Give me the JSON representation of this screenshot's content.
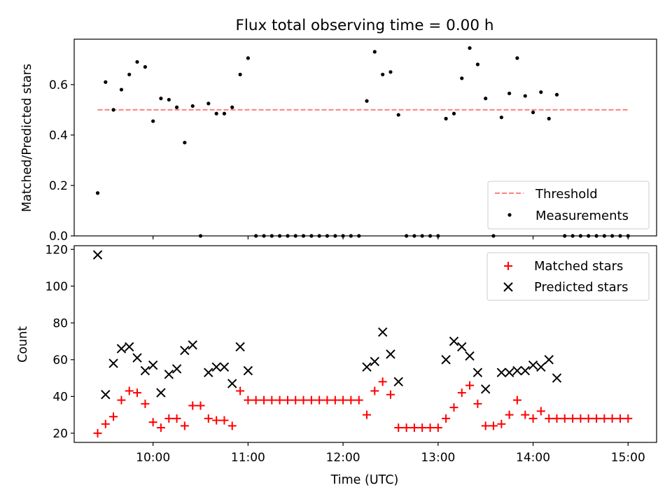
{
  "figure": {
    "title": "Flux total observing time = 0.00 h"
  },
  "chart_data": [
    {
      "type": "scatter",
      "xlabel": "",
      "ylabel": "Matched/Predicted stars",
      "xlim": [
        9.17,
        15.3
      ],
      "ylim": [
        0,
        0.78
      ],
      "yticks": [
        "0.0",
        "0.2",
        "0.4",
        "0.6"
      ],
      "xticks_shown": false,
      "grid": false,
      "legend_position": "lower-right",
      "threshold": {
        "name": "Threshold",
        "value": 0.5,
        "x_range": [
          9.417,
          15.0
        ],
        "color": "#ff7f7f",
        "style": "dashed"
      },
      "series": [
        {
          "name": "Measurements",
          "color": "#000000",
          "marker": "dot",
          "points": [
            [
              9.417,
              0.17
            ],
            [
              9.5,
              0.61
            ],
            [
              9.583,
              0.5
            ],
            [
              9.667,
              0.58
            ],
            [
              9.75,
              0.64
            ],
            [
              9.833,
              0.69
            ],
            [
              9.917,
              0.67
            ],
            [
              10.0,
              0.455
            ],
            [
              10.083,
              0.545
            ],
            [
              10.167,
              0.54
            ],
            [
              10.25,
              0.51
            ],
            [
              10.333,
              0.37
            ],
            [
              10.417,
              0.515
            ],
            [
              10.5,
              0.0
            ],
            [
              10.583,
              0.525
            ],
            [
              10.667,
              0.485
            ],
            [
              10.75,
              0.485
            ],
            [
              10.833,
              0.51
            ],
            [
              10.917,
              0.64
            ],
            [
              11.0,
              0.705
            ],
            [
              11.083,
              0.0
            ],
            [
              11.167,
              0.0
            ],
            [
              11.25,
              0.0
            ],
            [
              11.333,
              0.0
            ],
            [
              11.417,
              0.0
            ],
            [
              11.5,
              0.0
            ],
            [
              11.583,
              0.0
            ],
            [
              11.667,
              0.0
            ],
            [
              11.75,
              0.0
            ],
            [
              11.833,
              0.0
            ],
            [
              11.917,
              0.0
            ],
            [
              12.0,
              0.0
            ],
            [
              12.083,
              0.0
            ],
            [
              12.167,
              0.0
            ],
            [
              12.25,
              0.535
            ],
            [
              12.333,
              0.73
            ],
            [
              12.417,
              0.64
            ],
            [
              12.5,
              0.65
            ],
            [
              12.583,
              0.48
            ],
            [
              12.667,
              0.0
            ],
            [
              12.75,
              0.0
            ],
            [
              12.833,
              0.0
            ],
            [
              12.917,
              0.0
            ],
            [
              13.0,
              0.0
            ],
            [
              13.083,
              0.465
            ],
            [
              13.167,
              0.485
            ],
            [
              13.25,
              0.625
            ],
            [
              13.333,
              0.745
            ],
            [
              13.417,
              0.68
            ],
            [
              13.5,
              0.545
            ],
            [
              13.583,
              0.0
            ],
            [
              13.667,
              0.47
            ],
            [
              13.75,
              0.565
            ],
            [
              13.833,
              0.705
            ],
            [
              13.917,
              0.555
            ],
            [
              14.0,
              0.49
            ],
            [
              14.083,
              0.57
            ],
            [
              14.167,
              0.465
            ],
            [
              14.25,
              0.56
            ],
            [
              14.333,
              0.0
            ],
            [
              14.417,
              0.0
            ],
            [
              14.5,
              0.0
            ],
            [
              14.583,
              0.0
            ],
            [
              14.667,
              0.0
            ],
            [
              14.75,
              0.0
            ],
            [
              14.833,
              0.0
            ],
            [
              14.917,
              0.0
            ],
            [
              15.0,
              0.0
            ]
          ]
        }
      ]
    },
    {
      "type": "scatter",
      "xlabel": "Time (UTC)",
      "ylabel": "Count",
      "xlim": [
        9.17,
        15.3
      ],
      "ylim": [
        15,
        122
      ],
      "yticks": [
        "20",
        "40",
        "60",
        "80",
        "100",
        "120"
      ],
      "xticks": [
        {
          "value": 10,
          "label": "10:00"
        },
        {
          "value": 11,
          "label": "11:00"
        },
        {
          "value": 12,
          "label": "12:00"
        },
        {
          "value": 13,
          "label": "13:00"
        },
        {
          "value": 14,
          "label": "14:00"
        },
        {
          "value": 15,
          "label": "15:00"
        }
      ],
      "grid": false,
      "legend_position": "upper-right",
      "series": [
        {
          "name": "Matched stars",
          "color": "#ff0000",
          "marker": "plus",
          "points": [
            [
              9.417,
              20
            ],
            [
              9.5,
              25
            ],
            [
              9.583,
              29
            ],
            [
              9.667,
              38
            ],
            [
              9.75,
              43
            ],
            [
              9.833,
              42
            ],
            [
              9.917,
              36
            ],
            [
              10.0,
              26
            ],
            [
              10.083,
              23
            ],
            [
              10.167,
              28
            ],
            [
              10.25,
              28
            ],
            [
              10.333,
              24
            ],
            [
              10.417,
              35
            ],
            [
              10.5,
              35
            ],
            [
              10.583,
              28
            ],
            [
              10.667,
              27
            ],
            [
              10.75,
              27
            ],
            [
              10.833,
              24
            ],
            [
              10.917,
              43
            ],
            [
              11.0,
              38
            ],
            [
              11.083,
              38
            ],
            [
              11.167,
              38
            ],
            [
              11.25,
              38
            ],
            [
              11.333,
              38
            ],
            [
              11.417,
              38
            ],
            [
              11.5,
              38
            ],
            [
              11.583,
              38
            ],
            [
              11.667,
              38
            ],
            [
              11.75,
              38
            ],
            [
              11.833,
              38
            ],
            [
              11.917,
              38
            ],
            [
              12.0,
              38
            ],
            [
              12.083,
              38
            ],
            [
              12.167,
              38
            ],
            [
              12.25,
              30
            ],
            [
              12.333,
              43
            ],
            [
              12.417,
              48
            ],
            [
              12.5,
              41
            ],
            [
              12.583,
              23
            ],
            [
              12.667,
              23
            ],
            [
              12.75,
              23
            ],
            [
              12.833,
              23
            ],
            [
              12.917,
              23
            ],
            [
              13.0,
              23
            ],
            [
              13.083,
              28
            ],
            [
              13.167,
              34
            ],
            [
              13.25,
              42
            ],
            [
              13.333,
              46
            ],
            [
              13.417,
              36
            ],
            [
              13.5,
              24
            ],
            [
              13.583,
              24
            ],
            [
              13.667,
              25
            ],
            [
              13.75,
              30
            ],
            [
              13.833,
              38
            ],
            [
              13.917,
              30
            ],
            [
              14.0,
              28
            ],
            [
              14.083,
              32
            ],
            [
              14.167,
              28
            ],
            [
              14.25,
              28
            ],
            [
              14.333,
              28
            ],
            [
              14.417,
              28
            ],
            [
              14.5,
              28
            ],
            [
              14.583,
              28
            ],
            [
              14.667,
              28
            ],
            [
              14.75,
              28
            ],
            [
              14.833,
              28
            ],
            [
              14.917,
              28
            ],
            [
              15.0,
              28
            ]
          ]
        },
        {
          "name": "Predicted stars",
          "color": "#000000",
          "marker": "x",
          "points": [
            [
              9.417,
              117
            ],
            [
              9.5,
              41
            ],
            [
              9.583,
              58
            ],
            [
              9.667,
              66
            ],
            [
              9.75,
              67
            ],
            [
              9.833,
              61
            ],
            [
              9.917,
              54
            ],
            [
              10.0,
              57
            ],
            [
              10.083,
              42
            ],
            [
              10.167,
              52
            ],
            [
              10.25,
              55
            ],
            [
              10.333,
              65
            ],
            [
              10.417,
              68
            ],
            [
              10.583,
              53
            ],
            [
              10.667,
              56
            ],
            [
              10.75,
              56
            ],
            [
              10.833,
              47
            ],
            [
              10.917,
              67
            ],
            [
              11.0,
              54
            ],
            [
              12.25,
              56
            ],
            [
              12.333,
              59
            ],
            [
              12.417,
              75
            ],
            [
              12.5,
              63
            ],
            [
              12.583,
              48
            ],
            [
              13.083,
              60
            ],
            [
              13.167,
              70
            ],
            [
              13.25,
              67
            ],
            [
              13.333,
              62
            ],
            [
              13.417,
              53
            ],
            [
              13.5,
              44
            ],
            [
              13.667,
              53
            ],
            [
              13.75,
              53
            ],
            [
              13.833,
              54
            ],
            [
              13.917,
              54
            ],
            [
              14.0,
              57
            ],
            [
              14.083,
              56
            ],
            [
              14.167,
              60
            ],
            [
              14.25,
              50
            ]
          ]
        }
      ]
    }
  ]
}
